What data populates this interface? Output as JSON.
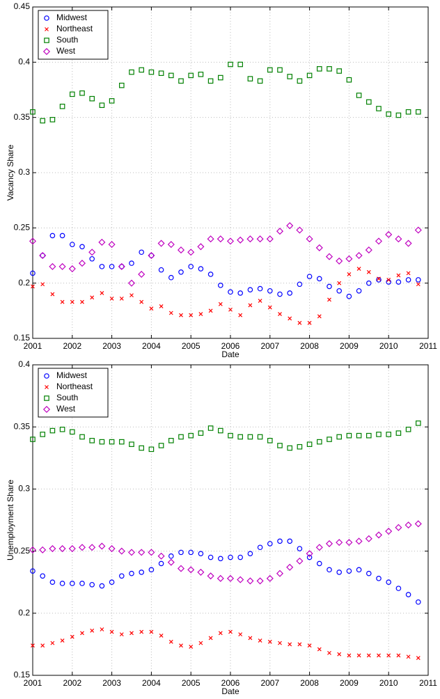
{
  "chart_data": [
    {
      "type": "scatter",
      "xlabel": "Date",
      "ylabel": "Vacancy Share",
      "x": [
        2001,
        2001.25,
        2001.5,
        2001.75,
        2002,
        2002.25,
        2002.5,
        2002.75,
        2003,
        2003.25,
        2003.5,
        2003.75,
        2004,
        2004.25,
        2004.5,
        2004.75,
        2005,
        2005.25,
        2005.5,
        2005.75,
        2006,
        2006.25,
        2006.5,
        2006.75,
        2007,
        2007.25,
        2007.5,
        2007.75,
        2008,
        2008.25,
        2008.5,
        2008.75,
        2009,
        2009.25,
        2009.5,
        2009.75,
        2010,
        2010.25,
        2010.5,
        2010.75
      ],
      "xlim": [
        2001,
        2011
      ],
      "xticks": [
        2001,
        2002,
        2003,
        2004,
        2005,
        2006,
        2007,
        2008,
        2009,
        2010,
        2011
      ],
      "ylim": [
        0.15,
        0.45
      ],
      "yticks": [
        0.15,
        0.2,
        0.25,
        0.3,
        0.35,
        0.4,
        0.45
      ],
      "grid": true,
      "legend": "upper-left",
      "series": [
        {
          "name": "Midwest",
          "color": "#0000ff",
          "marker": "circle",
          "values": [
            0.209,
            0.225,
            0.243,
            0.243,
            0.235,
            0.233,
            0.222,
            0.215,
            0.215,
            0.215,
            0.218,
            0.228,
            0.225,
            0.212,
            0.205,
            0.21,
            0.215,
            0.213,
            0.208,
            0.198,
            0.192,
            0.191,
            0.194,
            0.195,
            0.193,
            0.19,
            0.191,
            0.199,
            0.206,
            0.204,
            0.197,
            0.193,
            0.188,
            0.193,
            0.2,
            0.203,
            0.201,
            0.201,
            0.203,
            0.203
          ]
        },
        {
          "name": "Northeast",
          "color": "#ff0000",
          "marker": "x",
          "values": [
            0.197,
            0.199,
            0.19,
            0.183,
            0.183,
            0.183,
            0.187,
            0.191,
            0.186,
            0.186,
            0.189,
            0.183,
            0.177,
            0.179,
            0.173,
            0.171,
            0.171,
            0.172,
            0.175,
            0.181,
            0.176,
            0.171,
            0.18,
            0.184,
            0.178,
            0.172,
            0.168,
            0.164,
            0.164,
            0.17,
            0.185,
            0.2,
            0.208,
            0.213,
            0.21,
            0.204,
            0.203,
            0.207,
            0.209,
            0.199
          ]
        },
        {
          "name": "South",
          "color": "#008000",
          "marker": "square",
          "values": [
            0.355,
            0.347,
            0.348,
            0.36,
            0.371,
            0.372,
            0.367,
            0.361,
            0.365,
            0.379,
            0.391,
            0.393,
            0.391,
            0.39,
            0.388,
            0.383,
            0.388,
            0.389,
            0.383,
            0.386,
            0.398,
            0.398,
            0.385,
            0.383,
            0.393,
            0.393,
            0.387,
            0.383,
            0.388,
            0.394,
            0.394,
            0.392,
            0.384,
            0.37,
            0.364,
            0.358,
            0.353,
            0.352,
            0.355,
            0.355
          ]
        },
        {
          "name": "West",
          "color": "#bf00bf",
          "marker": "diamond",
          "values": [
            0.238,
            0.225,
            0.215,
            0.215,
            0.213,
            0.218,
            0.228,
            0.237,
            0.235,
            0.215,
            0.2,
            0.208,
            0.225,
            0.236,
            0.235,
            0.23,
            0.228,
            0.233,
            0.24,
            0.24,
            0.238,
            0.239,
            0.24,
            0.24,
            0.24,
            0.247,
            0.252,
            0.248,
            0.24,
            0.232,
            0.224,
            0.22,
            0.222,
            0.225,
            0.23,
            0.238,
            0.244,
            0.24,
            0.236,
            0.248
          ]
        }
      ]
    },
    {
      "type": "scatter",
      "xlabel": "Date",
      "ylabel": "Unemployment Share",
      "x": [
        2001,
        2001.25,
        2001.5,
        2001.75,
        2002,
        2002.25,
        2002.5,
        2002.75,
        2003,
        2003.25,
        2003.5,
        2003.75,
        2004,
        2004.25,
        2004.5,
        2004.75,
        2005,
        2005.25,
        2005.5,
        2005.75,
        2006,
        2006.25,
        2006.5,
        2006.75,
        2007,
        2007.25,
        2007.5,
        2007.75,
        2008,
        2008.25,
        2008.5,
        2008.75,
        2009,
        2009.25,
        2009.5,
        2009.75,
        2010,
        2010.25,
        2010.5,
        2010.75
      ],
      "xlim": [
        2001,
        2011
      ],
      "xticks": [
        2001,
        2002,
        2003,
        2004,
        2005,
        2006,
        2007,
        2008,
        2009,
        2010,
        2011
      ],
      "ylim": [
        0.15,
        0.4
      ],
      "yticks": [
        0.15,
        0.2,
        0.25,
        0.3,
        0.35,
        0.4
      ],
      "grid": true,
      "legend": "upper-left",
      "series": [
        {
          "name": "Midwest",
          "color": "#0000ff",
          "marker": "circle",
          "values": [
            0.234,
            0.23,
            0.225,
            0.224,
            0.224,
            0.224,
            0.223,
            0.222,
            0.225,
            0.23,
            0.232,
            0.233,
            0.235,
            0.24,
            0.246,
            0.249,
            0.249,
            0.248,
            0.245,
            0.244,
            0.245,
            0.245,
            0.248,
            0.253,
            0.256,
            0.258,
            0.258,
            0.252,
            0.245,
            0.24,
            0.235,
            0.233,
            0.234,
            0.235,
            0.232,
            0.228,
            0.225,
            0.22,
            0.215,
            0.209
          ]
        },
        {
          "name": "Northeast",
          "color": "#ff0000",
          "marker": "x",
          "values": [
            0.174,
            0.174,
            0.176,
            0.178,
            0.181,
            0.184,
            0.186,
            0.187,
            0.185,
            0.183,
            0.184,
            0.185,
            0.185,
            0.182,
            0.177,
            0.174,
            0.173,
            0.176,
            0.18,
            0.184,
            0.185,
            0.183,
            0.18,
            0.178,
            0.177,
            0.176,
            0.175,
            0.175,
            0.174,
            0.171,
            0.168,
            0.167,
            0.166,
            0.166,
            0.166,
            0.166,
            0.166,
            0.166,
            0.165,
            0.164
          ]
        },
        {
          "name": "South",
          "color": "#008000",
          "marker": "square",
          "values": [
            0.34,
            0.344,
            0.347,
            0.348,
            0.346,
            0.342,
            0.339,
            0.338,
            0.338,
            0.338,
            0.336,
            0.333,
            0.332,
            0.335,
            0.339,
            0.342,
            0.343,
            0.345,
            0.349,
            0.347,
            0.343,
            0.342,
            0.342,
            0.342,
            0.339,
            0.335,
            0.333,
            0.334,
            0.336,
            0.338,
            0.34,
            0.342,
            0.343,
            0.343,
            0.343,
            0.344,
            0.344,
            0.345,
            0.348,
            0.353
          ]
        },
        {
          "name": "West",
          "color": "#bf00bf",
          "marker": "diamond",
          "values": [
            0.251,
            0.251,
            0.252,
            0.252,
            0.252,
            0.253,
            0.253,
            0.254,
            0.252,
            0.25,
            0.249,
            0.249,
            0.249,
            0.246,
            0.241,
            0.236,
            0.235,
            0.233,
            0.23,
            0.228,
            0.228,
            0.227,
            0.226,
            0.226,
            0.228,
            0.232,
            0.237,
            0.242,
            0.248,
            0.253,
            0.256,
            0.257,
            0.257,
            0.258,
            0.26,
            0.263,
            0.266,
            0.269,
            0.271,
            0.272
          ]
        }
      ]
    }
  ]
}
